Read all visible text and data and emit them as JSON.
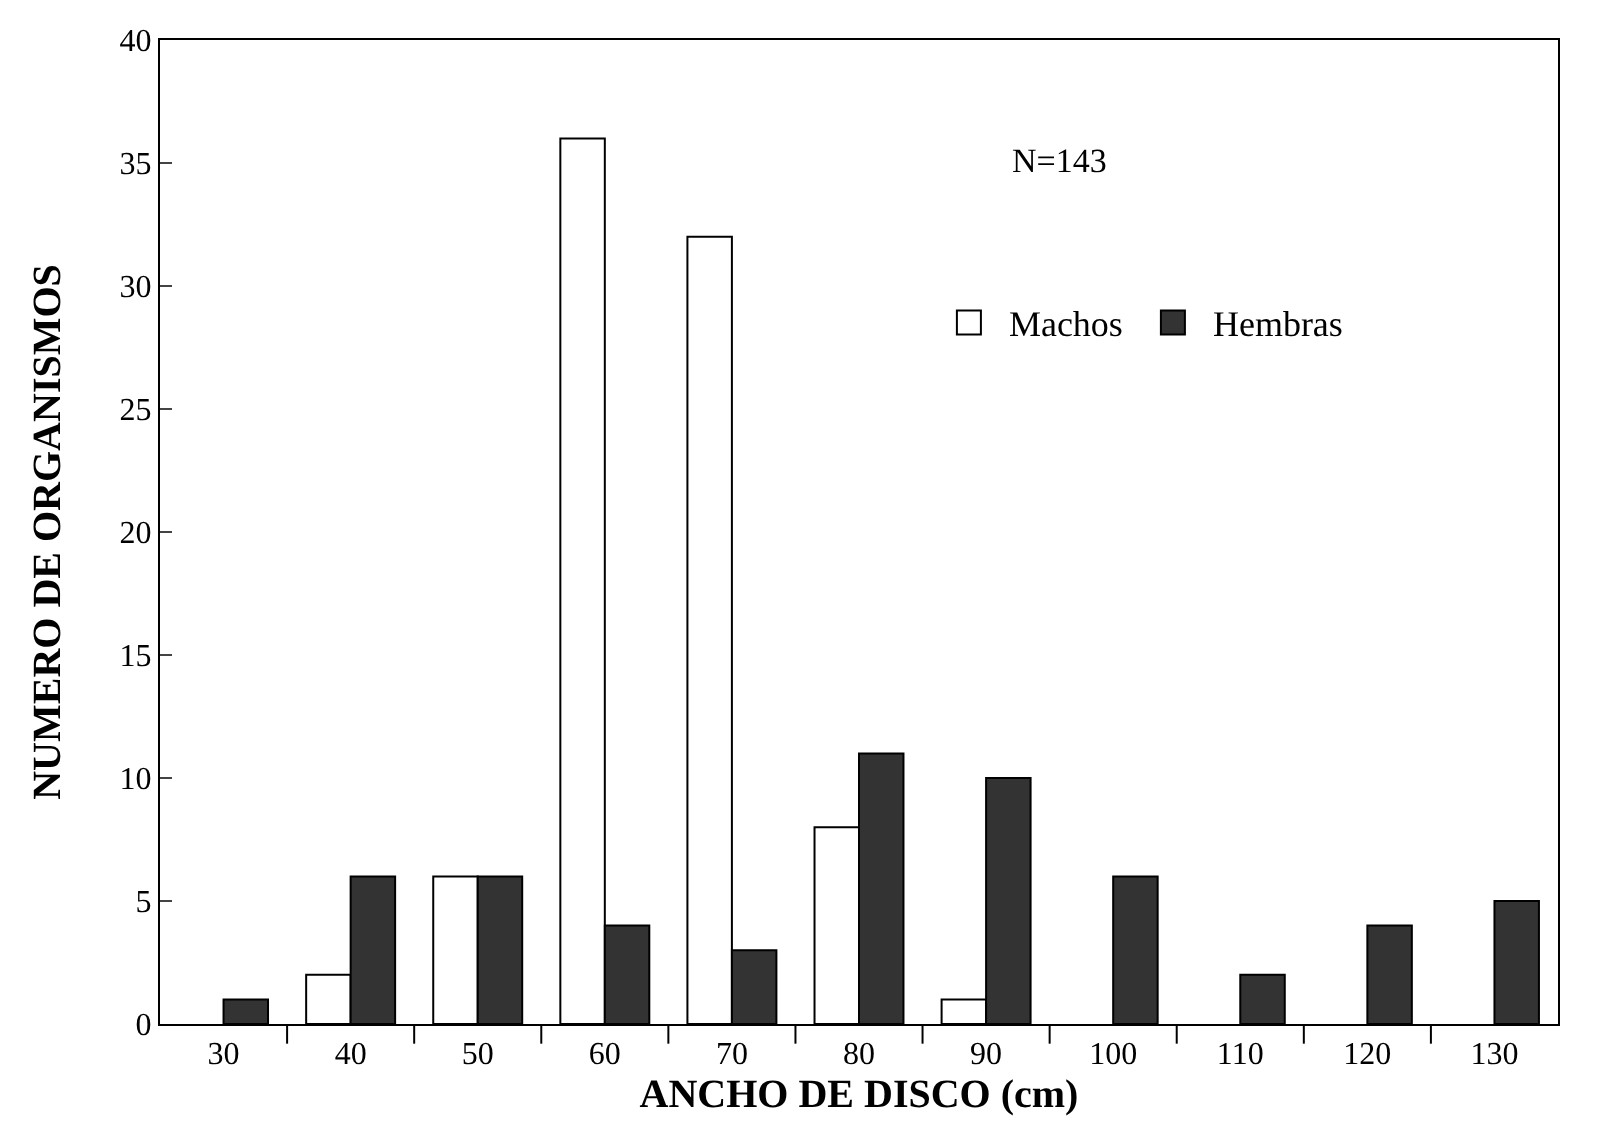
{
  "chart_data": {
    "type": "bar",
    "xlabel": "ANCHO DE DISCO (cm)",
    "ylabel": "NUMERO DE ORGANISMOS",
    "categories": [
      "30",
      "40",
      "50",
      "60",
      "70",
      "80",
      "90",
      "100",
      "110",
      "120",
      "130"
    ],
    "series": [
      {
        "name": "Machos",
        "color": "#ffffff",
        "values": [
          null,
          2,
          6,
          36,
          32,
          8,
          1,
          null,
          null,
          null,
          null
        ]
      },
      {
        "name": "Hembras",
        "color": "#333333",
        "values": [
          1,
          6,
          6,
          4,
          3,
          11,
          10,
          6,
          2,
          4,
          5
        ]
      }
    ],
    "ylim": [
      0,
      40
    ],
    "yticks": [
      0,
      5,
      10,
      15,
      20,
      25,
      30,
      35,
      40
    ],
    "annotations": [
      "N=143"
    ],
    "legend": "top right",
    "grid": false
  }
}
